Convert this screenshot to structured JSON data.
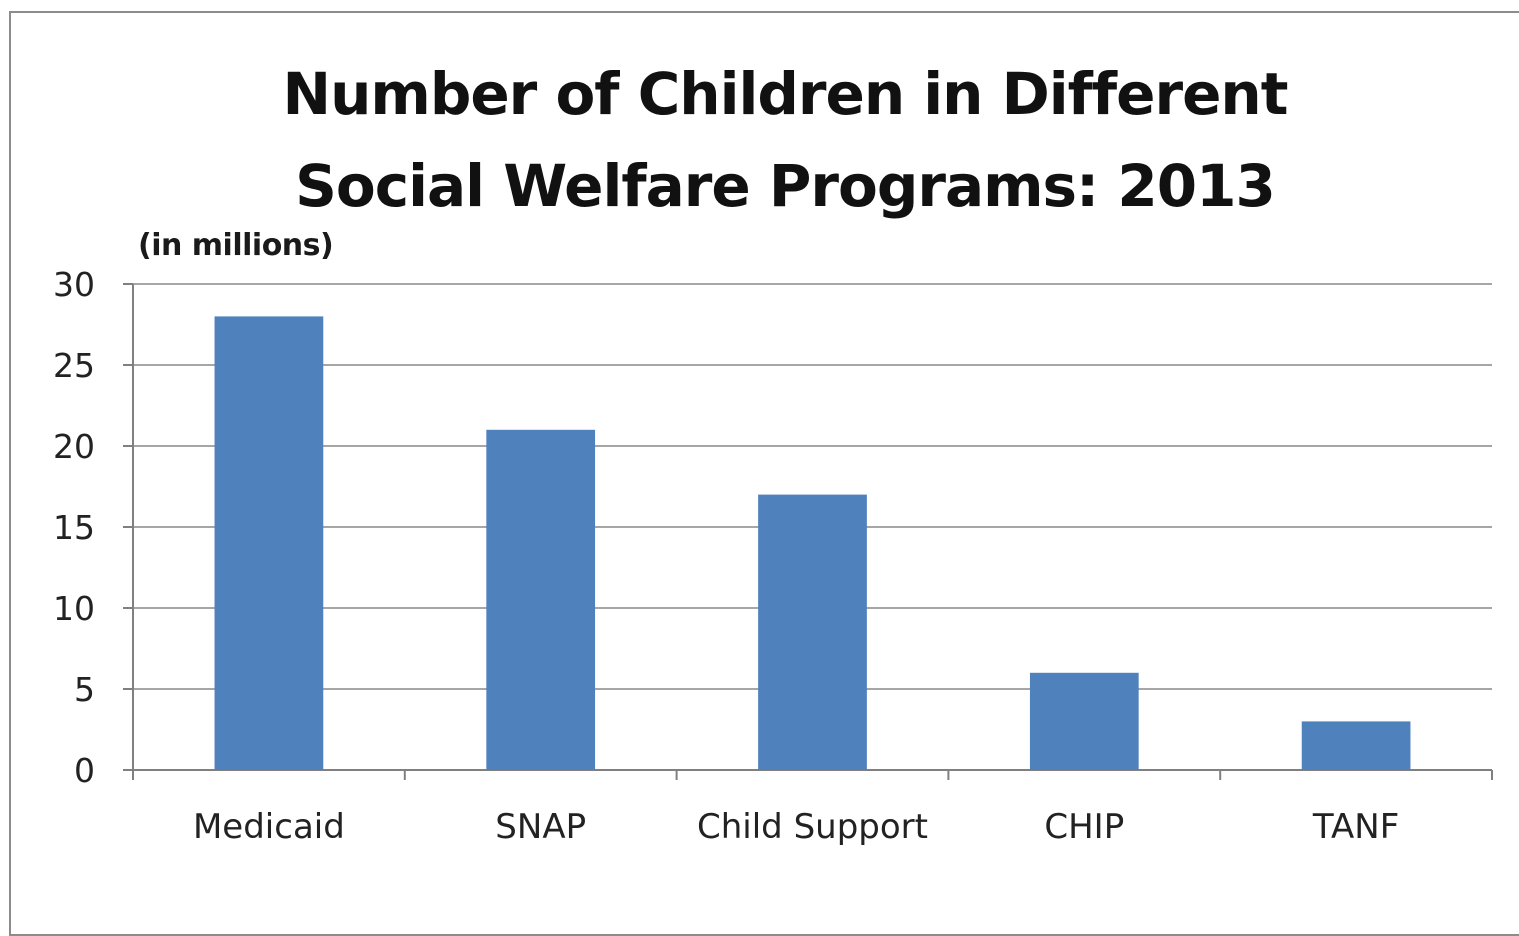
{
  "chart_data": {
    "type": "bar",
    "title_lines": [
      "Number of Children in Different",
      "Social Welfare Programs: 2013"
    ],
    "unit_label": "(in millions)",
    "categories": [
      "Medicaid",
      "SNAP",
      "Child Support",
      "CHIP",
      "TANF"
    ],
    "values": [
      28,
      21,
      17,
      6,
      3
    ],
    "ylim": [
      0,
      30
    ],
    "yticks": [
      "0",
      "5",
      "10",
      "15",
      "20",
      "25",
      "30"
    ],
    "grid": true,
    "legend": "none",
    "bar_color": "#4f81bd",
    "grid_color": "#a6a6a6"
  }
}
